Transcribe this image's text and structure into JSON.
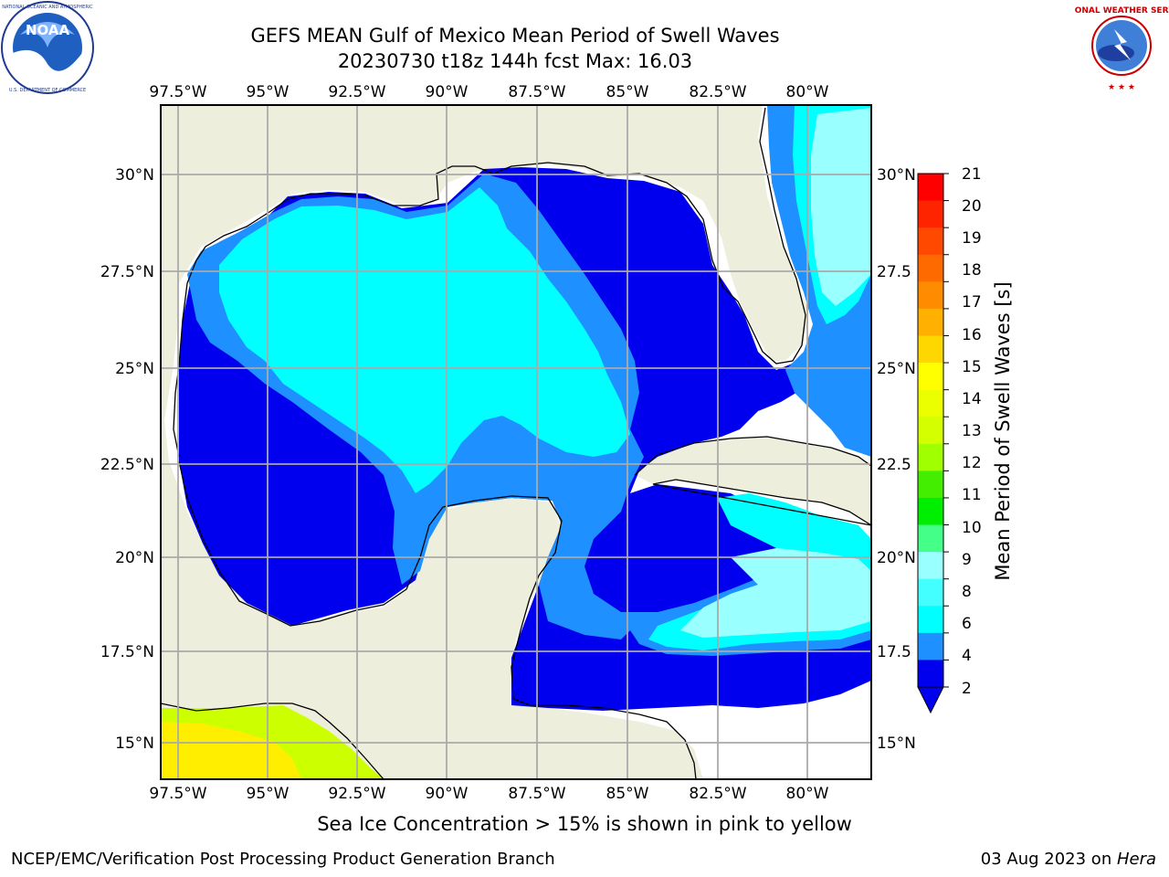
{
  "header": {
    "title_line1": "GEFS MEAN Gulf of Mexico Mean Period of Swell Waves",
    "title_line2": "20230730 t18z 144h fcst   Max: 16.03"
  },
  "logos": {
    "left": "NOAA",
    "left_ring_text": "NATIONAL OCEANIC AND ATMOSPHERIC ADMINISTRATION · U.S. DEPARTMENT OF COMMERCE ·",
    "right_ring_text": "NATIONAL WEATHER SERVICE"
  },
  "map": {
    "lon_labels": [
      "97.5°W",
      "95°W",
      "92.5°W",
      "90°W",
      "87.5°W",
      "85°W",
      "82.5°W",
      "80°W"
    ],
    "lat_labels_left": [
      "30°N",
      "27.5°N",
      "25°N",
      "22.5°N",
      "20°N",
      "17.5°N",
      "15°N"
    ],
    "lat_labels_right": [
      "30°N",
      "27.5",
      "25°N",
      "22.5",
      "20°N",
      "17.5",
      "15°N"
    ],
    "colors": {
      "land": "#eeeedd",
      "ocean_no_data": "#ffffff",
      "period_2_4": "#0000ee",
      "period_4_6": "#1e90ff",
      "period_6_8": "#00ffff",
      "period_8_9": "#99ffff",
      "ice_yellow": "#ffee00",
      "ice_yellowgreen": "#ccff00",
      "grid": "#aaaaaa"
    }
  },
  "colorbar": {
    "label": "Mean Period of Swell Waves [s]",
    "ticks": [
      "21",
      "20",
      "19",
      "18",
      "17",
      "16",
      "15",
      "14",
      "13",
      "12",
      "11",
      "10",
      "9",
      "8",
      "6",
      "4",
      "2"
    ],
    "colors": [
      "#ff0000",
      "#ff2400",
      "#ff4800",
      "#ff6a00",
      "#ff8c00",
      "#ffb000",
      "#ffd700",
      "#ffff00",
      "#ecff00",
      "#d4ff00",
      "#a0ff00",
      "#44ee00",
      "#00ee00",
      "#44ff88",
      "#99ffff",
      "#44ffff",
      "#00ffff",
      "#1e90ff",
      "#0000ee"
    ]
  },
  "note": "Sea Ice Concentration > 15% is shown in pink to yellow",
  "footer": {
    "left": "NCEP/EMC/Verification Post Processing Product Generation Branch",
    "right_prefix": "03 Aug 2023 on ",
    "right_host": "Hera"
  }
}
